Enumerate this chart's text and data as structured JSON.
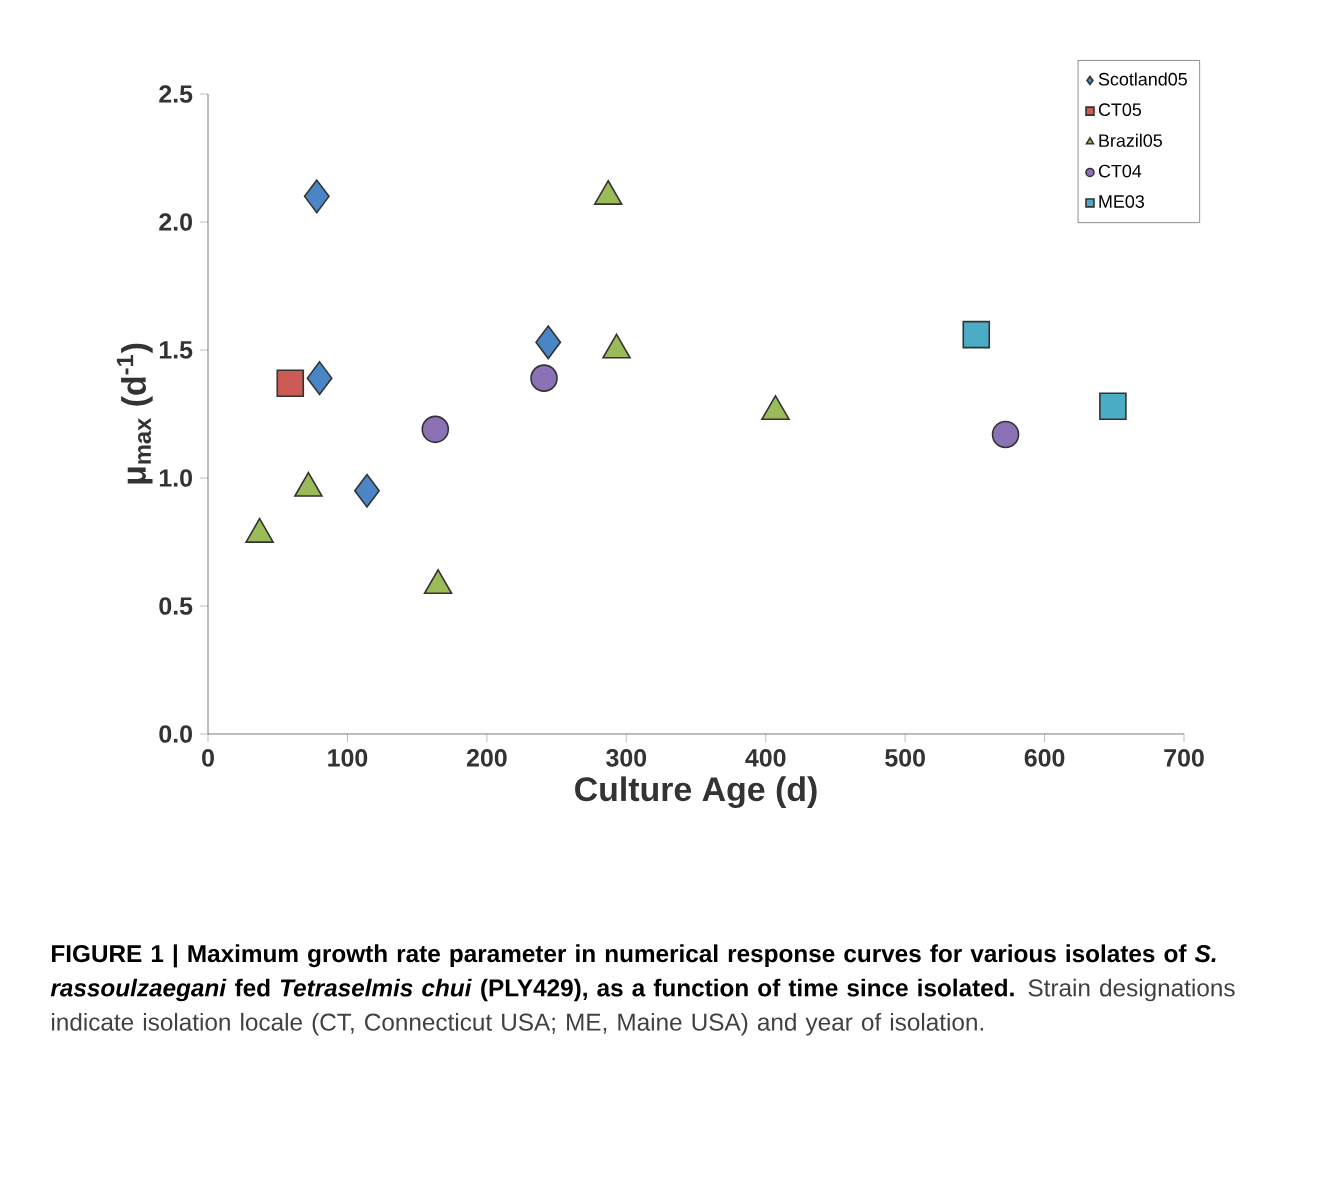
{
  "chart_data": {
    "type": "scatter",
    "xlabel": "Culture Age (d)",
    "ylabel": "μ$_{max}$ (d$^{-1}$)",
    "xlim": [
      0,
      700
    ],
    "xticks": [
      0,
      100,
      200,
      300,
      400,
      500,
      600,
      700
    ],
    "ylim": [
      0,
      2.5
    ],
    "yticks": [
      {
        "value": 0,
        "label": "0.0"
      },
      {
        "value": 0.5,
        "label": "0.5"
      },
      {
        "value": 1,
        "label": "1.0"
      },
      {
        "value": 1.5,
        "label": "1.5"
      },
      {
        "value": 2,
        "label": "2.0"
      },
      {
        "value": 2.5,
        "label": "2.5"
      }
    ],
    "grid": false,
    "legend": "top right",
    "series": [
      {
        "name": "Scotland05",
        "color": "#4a86c5",
        "marker": "diamond",
        "x": [
          78,
          80,
          114,
          244
        ],
        "values": [
          2.1,
          1.39,
          0.95,
          1.53
        ]
      },
      {
        "name": "CT05",
        "color": "#cd5b55",
        "marker": "square",
        "x": [
          59
        ],
        "values": [
          1.37
        ]
      },
      {
        "name": "Brazil05",
        "color": "#9bbb59",
        "marker": "triangle",
        "x": [
          37,
          72,
          165,
          287,
          293,
          407
        ],
        "values": [
          0.78,
          0.96,
          0.58,
          2.1,
          1.5,
          1.26
        ]
      },
      {
        "name": "CT04",
        "color": "#8b72b5",
        "marker": "circle",
        "x": [
          163,
          241,
          572
        ],
        "values": [
          1.19,
          1.39,
          1.17
        ]
      },
      {
        "name": "ME03",
        "color": "#4bacc6",
        "marker": "square",
        "x": [
          551,
          649
        ],
        "values": [
          1.56,
          1.28
        ]
      }
    ],
    "annotations": [
      "FIGURE 1 | Maximum growth rate parameter in numerical response curves for various isolates of *S. rassoulzaegani* fed *Tetraselmis chui* (PLY429), as a function of time since isolated.",
      "Strain designations indicate isolation locale (CT, Connecticut USA; ME, Maine USA) and year of isolation."
    ]
  }
}
